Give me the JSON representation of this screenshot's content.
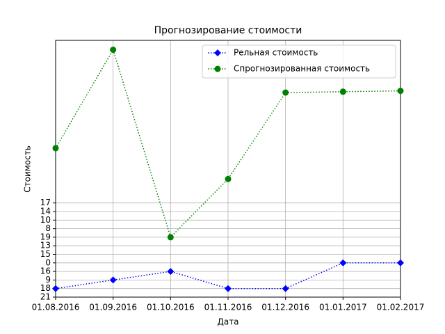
{
  "chart_data": {
    "type": "line",
    "title": "Прогнозирование стоимости",
    "x_label": "Дата",
    "y_label": "Стоимость",
    "categories": [
      "01.08.2016",
      "01.09.2016",
      "01.10.2016",
      "01.11.2016",
      "01.12.2016",
      "01.01.2017",
      "01.02.2017"
    ],
    "series": [
      {
        "name": "Рельная стоимость",
        "color": "#0000ff",
        "marker": "diamond",
        "values": [
          1,
          2,
          3,
          1,
          1,
          4,
          4
        ]
      },
      {
        "name": "Спрогнозированная стоимость",
        "color": "#008000",
        "marker": "circle",
        "values": [
          17.4,
          28.9,
          7,
          13.8,
          23.9,
          24.0,
          24.1
        ]
      }
    ],
    "ylim": [
      0,
      30
    ],
    "yticks": [
      {
        "value": 0,
        "label": "21"
      },
      {
        "value": 1,
        "label": "18"
      },
      {
        "value": 2,
        "label": "9"
      },
      {
        "value": 3,
        "label": "16"
      },
      {
        "value": 4,
        "label": "0"
      },
      {
        "value": 5,
        "label": "15"
      },
      {
        "value": 6,
        "label": "13"
      },
      {
        "value": 7,
        "label": "19"
      },
      {
        "value": 8,
        "label": "8"
      },
      {
        "value": 9,
        "label": "10"
      },
      {
        "value": 10,
        "label": "14"
      },
      {
        "value": 11,
        "label": "17"
      }
    ],
    "grid": true,
    "legend": "upper right"
  }
}
